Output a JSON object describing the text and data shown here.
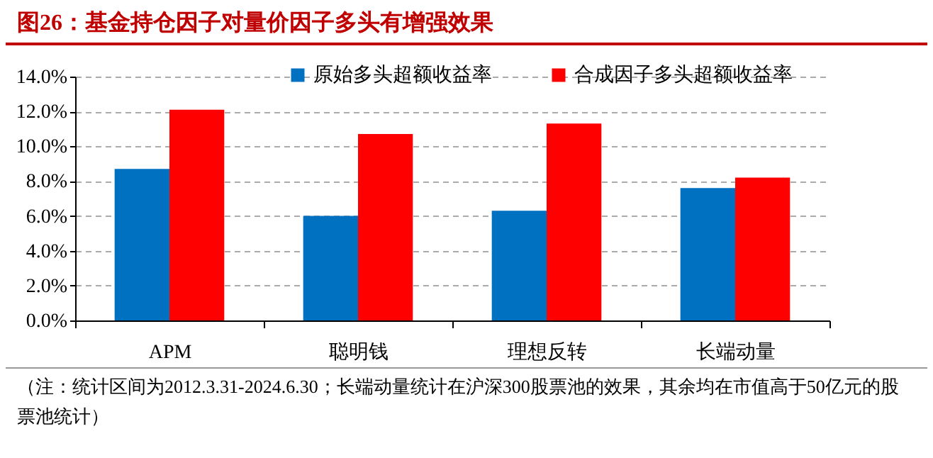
{
  "chart_data": {
    "type": "bar",
    "title": "图26：基金持仓因子对量价因子多头有增强效果",
    "categories": [
      "APM",
      "聪明钱",
      "理想反转",
      "长端动量"
    ],
    "series": [
      {
        "name": "原始多头超额收益率",
        "color": "#0070c0",
        "values": [
          8.7,
          6.0,
          6.3,
          7.6
        ]
      },
      {
        "name": "合成因子多头超额收益率",
        "color": "#ff0000",
        "values": [
          12.1,
          10.7,
          11.3,
          8.2
        ]
      }
    ],
    "ylim": [
      0,
      14
    ],
    "yticks": [
      {
        "value": 0,
        "label": "0.0%"
      },
      {
        "value": 2,
        "label": "2.0%"
      },
      {
        "value": 4,
        "label": "4.0%"
      },
      {
        "value": 6,
        "label": "6.0%"
      },
      {
        "value": 8,
        "label": "8.0%"
      },
      {
        "value": 10,
        "label": "10.0%"
      },
      {
        "value": 12,
        "label": "12.0%"
      },
      {
        "value": 14,
        "label": "14.0%"
      }
    ],
    "grid": "y",
    "legend": "top",
    "annotations": [
      "（注：统计区间为2012.3.31-2024.6.30；长端动量统计在沪深300股票池的效果，其余均在市值高于50亿元的股票池统计）"
    ]
  }
}
